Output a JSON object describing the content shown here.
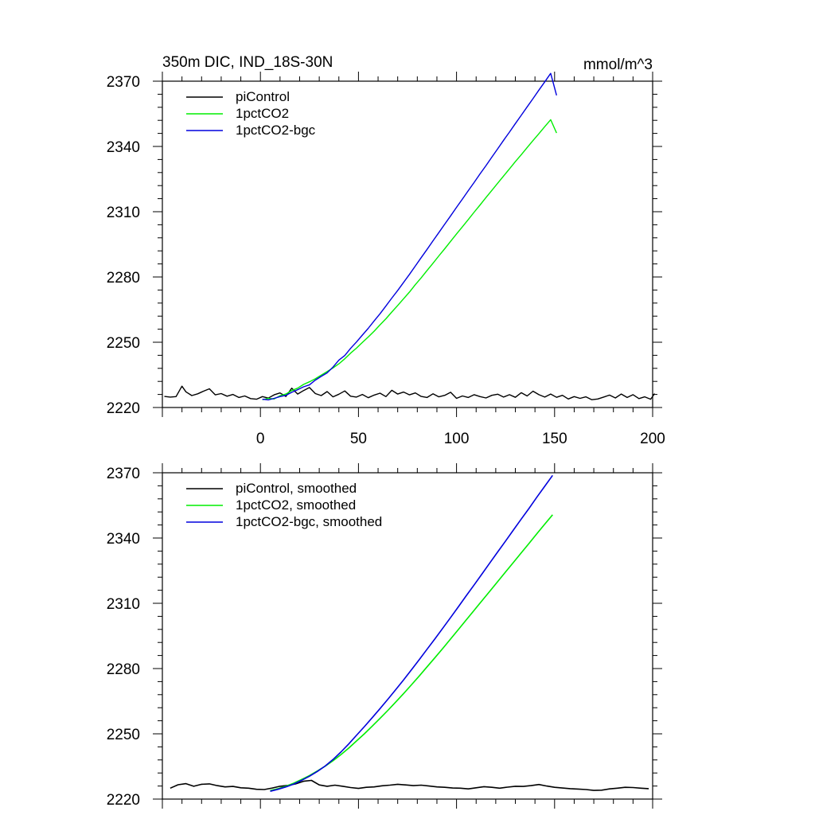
{
  "chart_data": [
    {
      "type": "line",
      "title": "350m DIC, IND_18S-30N",
      "units": "mmol/m^3",
      "xlim": [
        -50,
        200
      ],
      "ylim": [
        2220,
        2370
      ],
      "xticks": [
        0,
        50,
        100,
        150,
        200
      ],
      "xtick_labels": [
        "0",
        "50",
        "100",
        "150",
        "200"
      ],
      "yticks": [
        2220,
        2250,
        2280,
        2310,
        2340,
        2370
      ],
      "ytick_labels": [
        "2220",
        "2250",
        "2280",
        "2310",
        "2340",
        "2370"
      ],
      "legend_position": "top-left",
      "series": [
        {
          "name": "piControl",
          "color": "#000000",
          "x": [
            -49,
            -46,
            -43,
            -40,
            -38,
            -35,
            -32,
            -29,
            -26,
            -23,
            -20,
            -17,
            -14,
            -11,
            -8,
            -5,
            -2,
            1,
            4,
            7,
            10,
            13,
            16,
            19,
            22,
            25,
            28,
            31,
            34,
            37,
            40,
            43,
            46,
            49,
            52,
            55,
            58,
            61,
            64,
            67,
            70,
            73,
            76,
            79,
            82,
            85,
            88,
            91,
            94,
            97,
            100,
            103,
            106,
            109,
            112,
            115,
            118,
            121,
            124,
            127,
            130,
            133,
            136,
            139,
            142,
            145,
            148,
            151,
            154,
            157,
            160,
            163,
            166,
            169,
            172,
            175,
            178,
            181,
            184,
            187,
            190,
            193,
            196,
            199,
            201
          ],
          "y": [
            2225.1,
            2224.8,
            2225.0,
            2229.8,
            2227.2,
            2225.5,
            2226.3,
            2227.5,
            2228.6,
            2225.8,
            2226.4,
            2225.2,
            2226.0,
            2224.6,
            2225.3,
            2224.1,
            2223.8,
            2225.0,
            2224.3,
            2225.8,
            2226.7,
            2225.1,
            2228.9,
            2226.2,
            2227.8,
            2229.2,
            2226.4,
            2225.5,
            2227.3,
            2224.9,
            2226.1,
            2227.6,
            2225.2,
            2224.8,
            2226.0,
            2224.5,
            2225.7,
            2226.6,
            2225.0,
            2227.9,
            2226.2,
            2227.1,
            2225.8,
            2226.7,
            2225.1,
            2224.6,
            2226.3,
            2224.9,
            2225.6,
            2227.0,
            2224.2,
            2225.3,
            2224.6,
            2225.9,
            2225.0,
            2224.4,
            2225.6,
            2226.1,
            2224.8,
            2225.9,
            2224.7,
            2226.8,
            2225.3,
            2227.5,
            2225.9,
            2224.8,
            2226.2,
            2224.7,
            2225.6,
            2223.9,
            2225.0,
            2224.2,
            2224.9,
            2223.6,
            2223.9,
            2224.8,
            2225.7,
            2224.4,
            2226.2,
            2224.6,
            2225.9,
            2224.1,
            2224.9,
            2223.8,
            2226.4
          ]
        },
        {
          "name": "1pctCO2",
          "color": "#00ee00",
          "x": [
            1,
            4,
            7,
            10,
            13,
            16,
            19,
            22,
            25,
            28,
            31,
            34,
            37,
            40,
            43,
            46,
            49,
            52,
            55,
            58,
            61,
            64,
            67,
            70,
            73,
            76,
            79,
            82,
            85,
            88,
            91,
            94,
            97,
            100,
            103,
            106,
            109,
            112,
            115,
            118,
            121,
            124,
            127,
            130,
            133,
            136,
            139,
            142,
            145,
            148,
            151
          ],
          "y": [
            2223.6,
            2224.2,
            2223.9,
            2225.4,
            2226.2,
            2227.8,
            2228.9,
            2230.6,
            2231.8,
            2233.2,
            2234.9,
            2236.5,
            2238.2,
            2240.1,
            2242.4,
            2245.0,
            2247.3,
            2249.9,
            2252.4,
            2255.1,
            2258.0,
            2260.8,
            2263.9,
            2266.9,
            2270.0,
            2273.1,
            2276.5,
            2279.6,
            2283.0,
            2286.3,
            2289.7,
            2293.0,
            2296.4,
            2299.8,
            2303.1,
            2306.4,
            2309.8,
            2313.1,
            2316.5,
            2319.8,
            2323.1,
            2326.4,
            2329.7,
            2333.0,
            2336.2,
            2339.5,
            2342.7,
            2345.9,
            2349.1,
            2352.3,
            2346.2
          ]
        },
        {
          "name": "1pctCO2-bgc",
          "color": "#0000dd",
          "x": [
            1,
            4,
            7,
            10,
            13,
            16,
            19,
            22,
            25,
            28,
            31,
            34,
            37,
            40,
            43,
            46,
            49,
            52,
            55,
            58,
            61,
            64,
            67,
            70,
            73,
            76,
            79,
            82,
            85,
            88,
            91,
            94,
            97,
            100,
            103,
            106,
            109,
            112,
            115,
            118,
            121,
            124,
            127,
            130,
            133,
            136,
            139,
            142,
            145,
            148,
            151
          ],
          "y": [
            2223.8,
            2223.5,
            2224.2,
            2225.0,
            2225.6,
            2227.0,
            2228.2,
            2229.5,
            2230.4,
            2232.6,
            2234.3,
            2235.9,
            2238.6,
            2241.8,
            2243.9,
            2247.2,
            2250.1,
            2253.3,
            2256.4,
            2259.8,
            2263.1,
            2266.7,
            2270.3,
            2273.8,
            2277.5,
            2281.2,
            2285.1,
            2288.9,
            2292.7,
            2296.6,
            2300.4,
            2304.3,
            2308.1,
            2312.0,
            2315.8,
            2319.7,
            2323.5,
            2327.4,
            2331.2,
            2335.1,
            2338.9,
            2342.8,
            2346.6,
            2350.5,
            2354.3,
            2358.2,
            2362.0,
            2365.9,
            2369.7,
            2373.6,
            2363.5
          ]
        }
      ]
    },
    {
      "type": "line",
      "xlim": [
        -50,
        200
      ],
      "ylim": [
        2220,
        2370
      ],
      "xticks": [
        0,
        50,
        100,
        150,
        200
      ],
      "yticks": [
        2220,
        2250,
        2280,
        2310,
        2340,
        2370
      ],
      "ytick_labels": [
        "2220",
        "2250",
        "2280",
        "2310",
        "2340",
        "2370"
      ],
      "legend_position": "top-left",
      "series": [
        {
          "name": "piControl, smoothed",
          "color": "#000000",
          "x": [
            -46,
            -42,
            -38,
            -34,
            -30,
            -26,
            -22,
            -18,
            -14,
            -10,
            -6,
            -2,
            2,
            6,
            10,
            14,
            18,
            22,
            26,
            30,
            34,
            38,
            42,
            46,
            50,
            54,
            58,
            62,
            66,
            70,
            74,
            78,
            82,
            86,
            90,
            94,
            98,
            102,
            106,
            110,
            114,
            118,
            122,
            126,
            130,
            134,
            138,
            142,
            146,
            150,
            154,
            158,
            162,
            166,
            170,
            174,
            178,
            182,
            186,
            190,
            194,
            198
          ],
          "y": [
            2225.0,
            2226.6,
            2227.1,
            2225.9,
            2226.8,
            2227.0,
            2226.2,
            2225.6,
            2225.8,
            2225.2,
            2225.0,
            2224.5,
            2224.4,
            2225.1,
            2225.9,
            2226.3,
            2227.0,
            2228.2,
            2228.6,
            2226.5,
            2225.9,
            2226.4,
            2225.9,
            2225.3,
            2224.9,
            2225.4,
            2225.6,
            2226.1,
            2226.4,
            2226.8,
            2226.5,
            2226.2,
            2226.4,
            2226.0,
            2225.6,
            2225.4,
            2225.1,
            2225.0,
            2224.7,
            2225.2,
            2225.7,
            2225.4,
            2225.0,
            2225.5,
            2225.9,
            2225.8,
            2226.2,
            2226.7,
            2226.0,
            2225.4,
            2225.1,
            2224.8,
            2224.6,
            2224.4,
            2224.0,
            2224.1,
            2224.7,
            2225.0,
            2225.4,
            2225.3,
            2225.0,
            2224.8
          ]
        },
        {
          "name": "1pctCO2, smoothed",
          "color": "#00ee00",
          "x": [
            5,
            9,
            13,
            17,
            21,
            25,
            29,
            33,
            37,
            41,
            45,
            49,
            53,
            57,
            61,
            65,
            69,
            73,
            77,
            81,
            85,
            89,
            93,
            97,
            101,
            105,
            109,
            113,
            117,
            121,
            125,
            129,
            133,
            137,
            141,
            145,
            149
          ],
          "y": [
            2223.9,
            2224.8,
            2225.9,
            2227.3,
            2229.0,
            2230.8,
            2232.9,
            2235.1,
            2237.6,
            2240.4,
            2243.4,
            2246.7,
            2250.0,
            2253.5,
            2257.1,
            2260.8,
            2264.6,
            2268.5,
            2272.5,
            2276.6,
            2280.8,
            2285.0,
            2289.3,
            2293.6,
            2298.0,
            2302.4,
            2306.8,
            2311.2,
            2315.6,
            2320.0,
            2324.4,
            2328.8,
            2333.2,
            2337.6,
            2342.0,
            2346.4,
            2350.7
          ]
        },
        {
          "name": "1pctCO2-bgc, smoothed",
          "color": "#0000dd",
          "x": [
            5,
            9,
            13,
            17,
            21,
            25,
            29,
            33,
            37,
            41,
            45,
            49,
            53,
            57,
            61,
            65,
            69,
            73,
            77,
            81,
            85,
            89,
            93,
            97,
            101,
            105,
            109,
            113,
            117,
            121,
            125,
            129,
            133,
            137,
            141,
            145,
            149
          ],
          "y": [
            2223.6,
            2224.5,
            2225.6,
            2226.9,
            2228.6,
            2230.5,
            2232.7,
            2235.2,
            2238.2,
            2241.6,
            2245.3,
            2249.3,
            2253.3,
            2257.4,
            2261.6,
            2265.9,
            2270.3,
            2274.8,
            2279.4,
            2284.1,
            2288.9,
            2293.7,
            2298.6,
            2303.5,
            2308.5,
            2313.5,
            2318.5,
            2323.5,
            2328.6,
            2333.6,
            2338.6,
            2343.7,
            2348.7,
            2353.7,
            2358.8,
            2363.8,
            2368.8
          ]
        }
      ]
    }
  ]
}
